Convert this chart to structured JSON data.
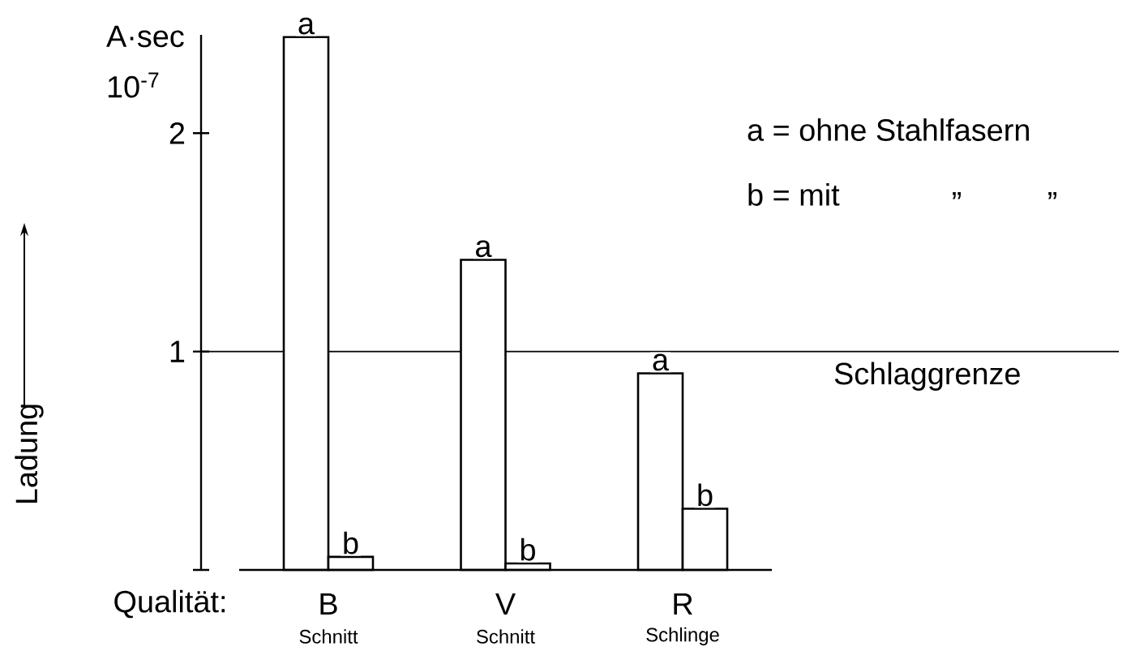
{
  "chart_data": {
    "type": "bar",
    "xlabel": "Qualität:",
    "ylabel": "Ladung",
    "categories": [
      "B",
      "V",
      "R"
    ],
    "series": [
      {
        "name": "a",
        "color": "#ffffff",
        "values": [
          2.44,
          1.42,
          0.9
        ]
      },
      {
        "name": "b",
        "color": "#ffffff",
        "values": [
          0.06,
          0.03,
          0.28
        ]
      }
    ],
    "ylim": [
      0,
      2.45
    ],
    "yticks": [
      {
        "value": 0,
        "label": null
      },
      1,
      2
    ],
    "ref_lines": [
      {
        "axis": "y",
        "value": 1,
        "label": "Schlaggrenze"
      }
    ],
    "annotations": [
      "Schnitt",
      "Schnitt",
      "Schlinge",
      "A·sec",
      "10$^{-7}$",
      "a = ohne Stahlfasern",
      "b = mit",
      "”",
      "”"
    ],
    "grid": false
  }
}
